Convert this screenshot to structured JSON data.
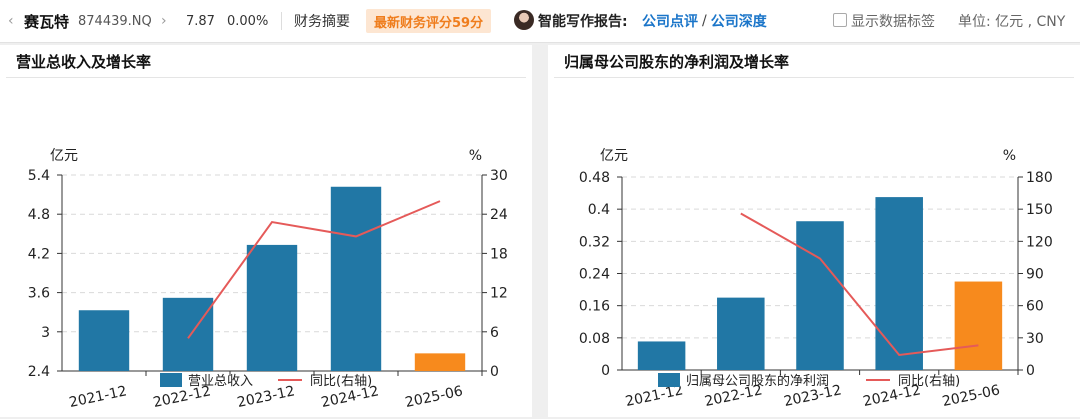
{
  "topbar": {
    "back_icon": "chevron-left-icon",
    "stock_name": "赛瓦特",
    "stock_code": "874439.NQ",
    "forward_icon": "chevron-right-icon",
    "price": "7.87",
    "change": "0.00%",
    "financial_summary": "财务摘要",
    "score_badge": "最新财务评分59分",
    "report_label": "智能写作报告:",
    "link_comment": "公司点评",
    "link_separator": "/",
    "link_depth": "公司深度",
    "show_labels": "显示数据标签",
    "unit": "单位: 亿元 , CNY"
  },
  "colors": {
    "bar_blue": "#2177a5",
    "bar_orange": "#f78a1d",
    "line_red": "#e55a59",
    "badge_bg": "#fde6d2",
    "badge_text": "#ef7d1d",
    "link_blue": "#1a75c9"
  },
  "chart_data": [
    {
      "type": "bar",
      "title": "营业总收入及增长率",
      "categories": [
        "2021-12",
        "2022-12",
        "2023-12",
        "2024-12",
        "2025-06"
      ],
      "left_unit": "亿元",
      "right_unit": "%",
      "left_ylim": [
        2.4,
        5.4
      ],
      "left_ticks": [
        "2.4",
        "3",
        "3.6",
        "4.2",
        "4.8",
        "5.4"
      ],
      "right_ylim": [
        0,
        30
      ],
      "right_ticks": [
        "0",
        "6",
        "12",
        "18",
        "24",
        "30"
      ],
      "series": [
        {
          "name": "营业总收入",
          "type": "bar",
          "axis": "left",
          "values": [
            3.33,
            3.52,
            4.33,
            5.22,
            2.67
          ],
          "colors": [
            "#2177a5",
            "#2177a5",
            "#2177a5",
            "#2177a5",
            "#f78a1d"
          ]
        },
        {
          "name": "同比(右轴)",
          "type": "line",
          "axis": "right",
          "values": [
            null,
            5.0,
            22.8,
            20.6,
            26.0
          ],
          "color": "#e55a59"
        }
      ],
      "grid": true,
      "legend": "bottom"
    },
    {
      "type": "bar",
      "title": "归属母公司股东的净利润及增长率",
      "categories": [
        "2021-12",
        "2022-12",
        "2023-12",
        "2024-12",
        "2025-06"
      ],
      "left_unit": "亿元",
      "right_unit": "%",
      "left_ylim": [
        0,
        0.48
      ],
      "left_ticks": [
        "0",
        "0.08",
        "0.16",
        "0.24",
        "0.32",
        "0.4",
        "0.48"
      ],
      "right_ylim": [
        0,
        180
      ],
      "right_ticks": [
        "0",
        "30",
        "60",
        "90",
        "120",
        "150",
        "180"
      ],
      "series": [
        {
          "name": "归属母公司股东的净利润",
          "type": "bar",
          "axis": "left",
          "values": [
            0.071,
            0.18,
            0.37,
            0.43,
            0.22
          ],
          "colors": [
            "#2177a5",
            "#2177a5",
            "#2177a5",
            "#2177a5",
            "#f78a1d"
          ]
        },
        {
          "name": "同比(右轴)",
          "type": "line",
          "axis": "right",
          "values": [
            null,
            146,
            104,
            14,
            23
          ],
          "color": "#e55a59"
        }
      ],
      "grid": true,
      "legend": "bottom"
    }
  ]
}
